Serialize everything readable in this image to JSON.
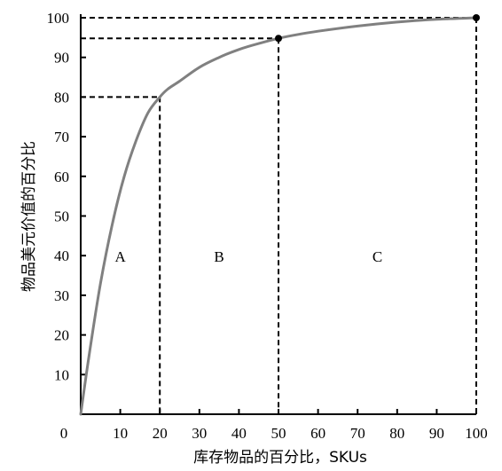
{
  "chart_data": {
    "type": "line",
    "xlabel": "库存物品的百分比，SKUs",
    "ylabel": "物品美元价值的百分比",
    "xlim": [
      0,
      100
    ],
    "ylim": [
      0,
      100
    ],
    "x_ticks": [
      "0",
      "10",
      "20",
      "30",
      "40",
      "50",
      "60",
      "70",
      "80",
      "90",
      "100"
    ],
    "y_ticks": [
      "10",
      "20",
      "30",
      "40",
      "50",
      "60",
      "70",
      "80",
      "90",
      "100"
    ],
    "series": [
      {
        "x": [
          0,
          2,
          5,
          8,
          11,
          14,
          17,
          20,
          22,
          25,
          30,
          35,
          40,
          45,
          50,
          55,
          60,
          70,
          80,
          90,
          100
        ],
        "y": [
          0,
          14,
          33,
          48,
          60,
          69,
          76,
          80,
          82,
          84,
          87.5,
          90,
          92,
          93.5,
          94.8,
          95.8,
          96.6,
          97.9,
          98.9,
          99.6,
          100
        ],
        "color": "#808080"
      }
    ],
    "markers": [
      {
        "x": 50,
        "y": 94.8
      },
      {
        "x": 100,
        "y": 100
      }
    ],
    "reference_lines": [
      {
        "x": 20,
        "y": 80
      },
      {
        "x": 50,
        "y": 94.8
      },
      {
        "x": 100,
        "y": 100
      }
    ],
    "zones": [
      {
        "label": "A",
        "x_from": 0,
        "x_to": 20
      },
      {
        "label": "B",
        "x_from": 20,
        "x_to": 50
      },
      {
        "label": "C",
        "x_from": 50,
        "x_to": 100
      }
    ],
    "grid": false,
    "legend": "none"
  }
}
